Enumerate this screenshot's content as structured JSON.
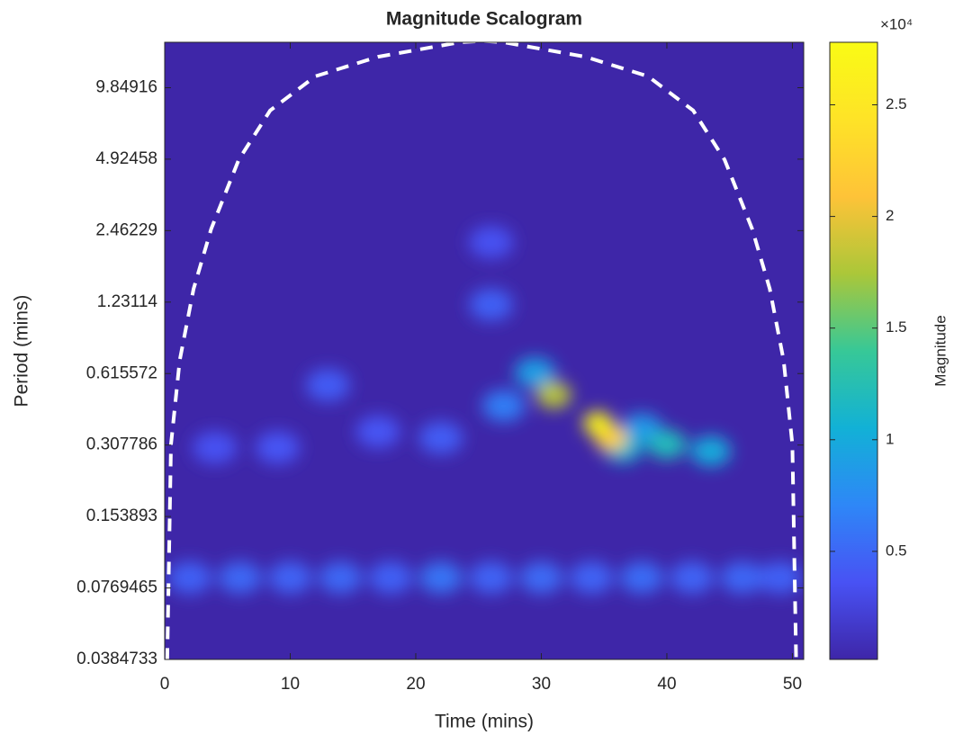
{
  "chart_data": {
    "type": "scalogram",
    "title": "Magnitude Scalogram",
    "xlabel": "Time (mins)",
    "ylabel": "Period (mins)",
    "xlim": [
      0,
      50.9
    ],
    "xticks": [
      0,
      10,
      20,
      30,
      40,
      50
    ],
    "ylim": [
      0.0384733,
      15.3
    ],
    "ylog": true,
    "yticks": [
      0.0384733,
      0.0769465,
      0.153893,
      0.307786,
      0.615572,
      1.23114,
      2.46229,
      4.92458,
      9.84916
    ],
    "clim": [
      160,
      27800
    ],
    "cticks": [
      {
        "value": 5000,
        "label": "0.5"
      },
      {
        "value": 10000,
        "label": "1"
      },
      {
        "value": 15000,
        "label": "1.5"
      },
      {
        "value": 20000,
        "label": "2"
      },
      {
        "value": 25000,
        "label": "2.5"
      }
    ],
    "colorbar_exponent": "×10⁴",
    "colorbar_label": "Magnitude",
    "coi": {
      "x": [
        0.2,
        0.5,
        1.2,
        2.3,
        3.7,
        5.9,
        8.4,
        12,
        17,
        23.5,
        25.3,
        27,
        33.5,
        38.5,
        42.1,
        44.6,
        46.8,
        48.2,
        49.3,
        50,
        50.3
      ],
      "period": [
        0.038,
        0.31,
        0.7,
        1.4,
        2.5,
        4.9,
        7.9,
        11,
        13.3,
        15.3,
        15.5,
        15.3,
        13.3,
        11,
        7.9,
        4.9,
        2.5,
        1.4,
        0.7,
        0.31,
        0.038
      ]
    },
    "hotspots": [
      {
        "x": 2,
        "period": 0.085,
        "magnitude": 4500
      },
      {
        "x": 6,
        "period": 0.085,
        "magnitude": 5000
      },
      {
        "x": 10,
        "period": 0.085,
        "magnitude": 4800
      },
      {
        "x": 14,
        "period": 0.085,
        "magnitude": 5000
      },
      {
        "x": 18,
        "period": 0.085,
        "magnitude": 4600
      },
      {
        "x": 22,
        "period": 0.085,
        "magnitude": 5800
      },
      {
        "x": 26,
        "period": 0.085,
        "magnitude": 4800
      },
      {
        "x": 30,
        "period": 0.085,
        "magnitude": 5200
      },
      {
        "x": 34,
        "period": 0.085,
        "magnitude": 4700
      },
      {
        "x": 38,
        "period": 0.085,
        "magnitude": 5300
      },
      {
        "x": 42,
        "period": 0.085,
        "magnitude": 4800
      },
      {
        "x": 46,
        "period": 0.085,
        "magnitude": 4900
      },
      {
        "x": 49,
        "period": 0.085,
        "magnitude": 4500
      },
      {
        "x": 4,
        "period": 0.3,
        "magnitude": 3500
      },
      {
        "x": 9,
        "period": 0.3,
        "magnitude": 3800
      },
      {
        "x": 13,
        "period": 0.55,
        "magnitude": 4200
      },
      {
        "x": 17,
        "period": 0.35,
        "magnitude": 3800
      },
      {
        "x": 22,
        "period": 0.33,
        "magnitude": 4300
      },
      {
        "x": 26,
        "period": 2.2,
        "magnitude": 3500
      },
      {
        "x": 26,
        "period": 1.2,
        "magnitude": 4500
      },
      {
        "x": 27,
        "period": 0.45,
        "magnitude": 6500
      },
      {
        "x": 29.5,
        "period": 0.62,
        "magnitude": 9000
      },
      {
        "x": 38,
        "period": 0.36,
        "magnitude": 8500
      },
      {
        "x": 43.5,
        "period": 0.29,
        "magnitude": 10000
      },
      {
        "x": 40,
        "period": 0.31,
        "magnitude": 12000
      },
      {
        "x": 36.5,
        "period": 0.3,
        "magnitude": 11000
      },
      {
        "x": 31,
        "period": 0.5,
        "magnitude": 18000
      },
      {
        "x": 35.5,
        "period": 0.33,
        "magnitude": 22000
      },
      {
        "x": 34.5,
        "period": 0.38,
        "magnitude": 27000
      }
    ]
  }
}
